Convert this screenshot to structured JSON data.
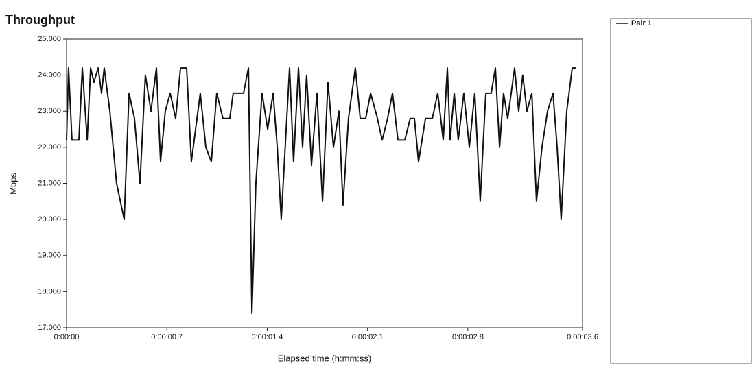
{
  "chart_data": {
    "type": "line",
    "title": "Throughput",
    "xlabel": "Elapsed time (h:mm:ss)",
    "ylabel": "Mbps",
    "legend": "right",
    "xlim": [
      0,
      3.6
    ],
    "ylim": [
      17,
      25
    ],
    "xticks": [
      {
        "value": 0,
        "label": "0:00:00"
      },
      {
        "value": 0.7,
        "label": "0:00:00.7"
      },
      {
        "value": 1.4,
        "label": "0:00:01.4"
      },
      {
        "value": 2.1,
        "label": "0:00:02.1"
      },
      {
        "value": 2.8,
        "label": "0:00:02.8"
      },
      {
        "value": 3.6,
        "label": "0:00:03.6"
      }
    ],
    "yticks": [
      {
        "value": 17,
        "label": "17.000"
      },
      {
        "value": 18,
        "label": "18.000"
      },
      {
        "value": 19,
        "label": "19.000"
      },
      {
        "value": 20,
        "label": "20.000"
      },
      {
        "value": 21,
        "label": "21.000"
      },
      {
        "value": 22,
        "label": "22.000"
      },
      {
        "value": 23,
        "label": "23.000"
      },
      {
        "value": 24,
        "label": "24.000"
      },
      {
        "value": 25,
        "label": "25.000"
      }
    ],
    "x": [
      0,
      0.014,
      0.038,
      0.086,
      0.11,
      0.144,
      0.168,
      0.191,
      0.22,
      0.244,
      0.263,
      0.302,
      0.349,
      0.402,
      0.436,
      0.474,
      0.512,
      0.55,
      0.589,
      0.627,
      0.656,
      0.689,
      0.723,
      0.761,
      0.795,
      0.838,
      0.871,
      0.933,
      0.972,
      1.01,
      1.048,
      1.091,
      1.139,
      1.163,
      1.235,
      1.269,
      1.293,
      1.321,
      1.364,
      1.403,
      1.441,
      1.47,
      1.498,
      1.556,
      1.584,
      1.618,
      1.647,
      1.675,
      1.709,
      1.747,
      1.786,
      1.824,
      1.862,
      1.9,
      1.929,
      1.967,
      2.015,
      2.049,
      2.087,
      2.121,
      2.169,
      2.202,
      2.24,
      2.274,
      2.312,
      2.36,
      2.398,
      2.427,
      2.456,
      2.504,
      2.552,
      2.59,
      2.628,
      2.657,
      2.676,
      2.705,
      2.733,
      2.772,
      2.81,
      2.848,
      2.886,
      2.925,
      2.963,
      2.992,
      3.021,
      3.049,
      3.078,
      3.126,
      3.155,
      3.183,
      3.212,
      3.246,
      3.279,
      3.317,
      3.356,
      3.394,
      3.423,
      3.451,
      3.49,
      3.528,
      3.557
    ],
    "series": [
      {
        "name": "Pair 1",
        "color": "#111111",
        "values": [
          22.2,
          24.2,
          22.2,
          22.2,
          24.2,
          22.2,
          24.2,
          23.8,
          24.2,
          23.5,
          24.2,
          23.0,
          21.0,
          20.0,
          23.5,
          22.8,
          21.0,
          24.0,
          23.0,
          24.2,
          21.6,
          23.0,
          23.5,
          22.8,
          24.2,
          24.2,
          21.6,
          23.5,
          22.0,
          21.6,
          23.5,
          22.8,
          22.8,
          23.5,
          23.5,
          24.2,
          17.4,
          21.0,
          23.5,
          22.5,
          23.5,
          22.0,
          20.0,
          24.2,
          21.6,
          24.2,
          22.0,
          24.0,
          21.5,
          23.5,
          20.5,
          23.8,
          22.0,
          23.0,
          20.4,
          22.8,
          24.2,
          22.8,
          22.8,
          23.5,
          22.8,
          22.2,
          22.8,
          23.5,
          22.2,
          22.2,
          22.8,
          22.8,
          21.6,
          22.8,
          22.8,
          23.5,
          22.2,
          24.2,
          22.2,
          23.5,
          22.2,
          23.5,
          22.0,
          23.5,
          20.5,
          23.5,
          23.5,
          24.2,
          22.0,
          23.5,
          22.8,
          24.2,
          23.0,
          24.0,
          23.0,
          23.5,
          20.5,
          22.0,
          23.0,
          23.5,
          22.0,
          20.0,
          23.0,
          24.2,
          24.2
        ]
      }
    ]
  }
}
